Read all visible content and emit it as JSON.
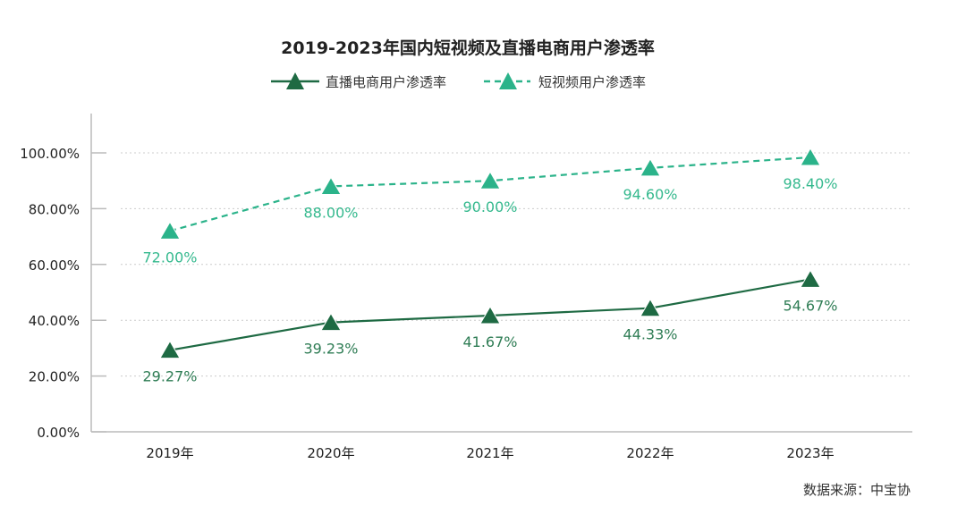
{
  "chart_data": {
    "type": "line",
    "title": "2019-2023年国内短视频及直播电商用户渗透率",
    "categories": [
      "2019年",
      "2020年",
      "2021年",
      "2022年",
      "2023年"
    ],
    "ylim": [
      0,
      100
    ],
    "yticks": [
      "0.00%",
      "20.00%",
      "40.00%",
      "60.00%",
      "80.00%",
      "100.00%"
    ],
    "grid": true,
    "legend_position": "top",
    "series": [
      {
        "name": "直播电商用户渗透率",
        "values": [
          29.27,
          39.23,
          41.67,
          44.33,
          54.67
        ],
        "labels": [
          "29.27%",
          "39.23%",
          "41.67%",
          "44.33%",
          "54.67%"
        ],
        "color": "#1e6a43",
        "label_color": "#2f7d55",
        "dash": false
      },
      {
        "name": "短视频用户渗透率",
        "values": [
          72.0,
          88.0,
          90.0,
          94.6,
          98.4
        ],
        "labels": [
          "72.00%",
          "88.00%",
          "90.00%",
          "94.60%",
          "98.40%"
        ],
        "color": "#2bb38a",
        "label_color": "#35b98e",
        "dash": true
      }
    ],
    "source": "数据来源：中宝协"
  }
}
